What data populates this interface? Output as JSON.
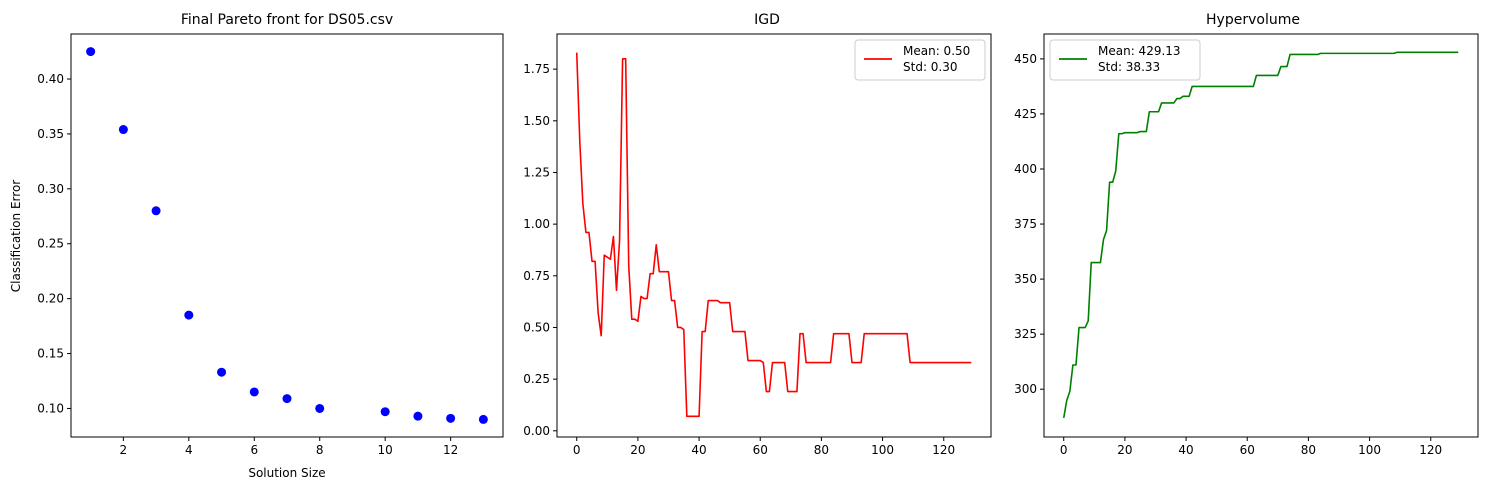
{
  "figure": {
    "background": "#ffffff"
  },
  "chart_data": [
    {
      "type": "scatter",
      "title": "Final Pareto front for DS05.csv",
      "xlabel": "Solution Size",
      "ylabel": "Classification Error",
      "xlim": [
        0.4,
        13.6
      ],
      "ylim": [
        0.074,
        0.441
      ],
      "xticks": [
        2,
        4,
        6,
        8,
        10,
        12
      ],
      "yticks": [
        0.1,
        0.15,
        0.2,
        0.25,
        0.3,
        0.35,
        0.4
      ],
      "ytick_labels": [
        "0.10",
        "0.15",
        "0.20",
        "0.25",
        "0.30",
        "0.35",
        "0.40"
      ],
      "color": "#0000ff",
      "grid": false,
      "x": [
        1,
        2,
        3,
        4,
        5,
        6,
        7,
        8,
        10,
        11,
        12,
        13
      ],
      "y": [
        0.425,
        0.354,
        0.28,
        0.185,
        0.133,
        0.115,
        0.109,
        0.1,
        0.097,
        0.093,
        0.091,
        0.09
      ]
    },
    {
      "type": "line",
      "title": "IGD",
      "xlabel": "",
      "ylabel": "",
      "xlim": [
        -6.45,
        135.45
      ],
      "ylim": [
        -0.03,
        1.92
      ],
      "xticks": [
        0,
        20,
        40,
        60,
        80,
        100,
        120
      ],
      "yticks": [
        0.0,
        0.25,
        0.5,
        0.75,
        1.0,
        1.25,
        1.5,
        1.75
      ],
      "ytick_labels": [
        "0.00",
        "0.25",
        "0.50",
        "0.75",
        "1.00",
        "1.25",
        "1.50",
        "1.75"
      ],
      "color": "#ff0000",
      "grid": false,
      "legend": {
        "position": "upper right",
        "lines": [
          "Mean: 0.50",
          "Std: 0.30"
        ]
      },
      "series": [
        {
          "x": [
            0,
            1,
            2,
            3,
            4,
            5,
            6,
            7,
            8,
            9,
            10,
            11,
            12,
            13,
            14,
            15,
            16,
            17,
            18,
            19,
            20,
            21,
            22,
            23,
            24,
            25,
            26,
            27,
            28,
            29,
            30,
            31,
            32,
            33,
            34,
            35,
            36,
            37,
            38,
            39,
            40,
            41,
            42,
            43,
            44,
            45,
            46,
            47,
            48,
            49,
            50,
            51,
            52,
            53,
            54,
            55,
            56,
            57,
            58,
            59,
            60,
            61,
            62,
            63,
            64,
            65,
            66,
            67,
            68,
            69,
            70,
            71,
            72,
            73,
            74,
            75,
            76,
            77,
            78,
            79,
            80,
            81,
            82,
            83,
            84,
            85,
            86,
            87,
            88,
            89,
            90,
            91,
            92,
            93,
            94,
            95,
            96,
            97,
            98,
            99,
            100,
            101,
            102,
            103,
            104,
            105,
            106,
            107,
            108,
            109,
            110,
            111,
            112,
            113,
            114,
            115,
            116,
            117,
            118,
            119,
            120,
            121,
            122,
            123,
            124,
            125,
            126,
            127,
            128,
            129
          ],
          "y": [
            1.83,
            1.4,
            1.1,
            0.96,
            0.96,
            0.82,
            0.82,
            0.57,
            0.46,
            0.85,
            0.84,
            0.83,
            0.94,
            0.68,
            0.92,
            1.8,
            1.8,
            0.8,
            0.54,
            0.54,
            0.53,
            0.65,
            0.64,
            0.64,
            0.76,
            0.76,
            0.9,
            0.77,
            0.77,
            0.77,
            0.77,
            0.63,
            0.63,
            0.5,
            0.5,
            0.49,
            0.07,
            0.07,
            0.07,
            0.07,
            0.07,
            0.48,
            0.48,
            0.63,
            0.63,
            0.63,
            0.63,
            0.62,
            0.62,
            0.62,
            0.62,
            0.48,
            0.48,
            0.48,
            0.48,
            0.48,
            0.34,
            0.34,
            0.34,
            0.34,
            0.34,
            0.33,
            0.19,
            0.19,
            0.33,
            0.33,
            0.33,
            0.33,
            0.33,
            0.19,
            0.19,
            0.19,
            0.19,
            0.47,
            0.47,
            0.33,
            0.33,
            0.33,
            0.33,
            0.33,
            0.33,
            0.33,
            0.33,
            0.33,
            0.47,
            0.47,
            0.47,
            0.47,
            0.47,
            0.47,
            0.33,
            0.33,
            0.33,
            0.33,
            0.47,
            0.47,
            0.47,
            0.47,
            0.47,
            0.47,
            0.47,
            0.47,
            0.47,
            0.47,
            0.47,
            0.47,
            0.47,
            0.47,
            0.47,
            0.33,
            0.33,
            0.33,
            0.33,
            0.33,
            0.33,
            0.33,
            0.33,
            0.33,
            0.33,
            0.33,
            0.33,
            0.33,
            0.33,
            0.33,
            0.33,
            0.33,
            0.33,
            0.33,
            0.33,
            0.33
          ]
        }
      ]
    },
    {
      "type": "line",
      "title": "Hypervolume",
      "xlabel": "",
      "ylabel": "",
      "xlim": [
        -6.45,
        135.45
      ],
      "ylim": [
        278.3,
        461.3
      ],
      "xticks": [
        0,
        20,
        40,
        60,
        80,
        100,
        120
      ],
      "yticks": [
        300,
        325,
        350,
        375,
        400,
        425,
        450
      ],
      "ytick_labels": [
        "300",
        "325",
        "350",
        "375",
        "400",
        "425",
        "450"
      ],
      "color": "#008000",
      "grid": false,
      "legend": {
        "position": "upper left",
        "lines": [
          "Mean: 429.13",
          "Std: 38.33"
        ]
      },
      "series": [
        {
          "x": [
            0,
            1,
            2,
            3,
            4,
            5,
            6,
            7,
            8,
            9,
            10,
            11,
            12,
            13,
            14,
            15,
            16,
            17,
            18,
            19,
            20,
            21,
            22,
            23,
            24,
            25,
            26,
            27,
            28,
            29,
            30,
            31,
            32,
            33,
            34,
            35,
            36,
            37,
            38,
            39,
            40,
            41,
            42,
            43,
            44,
            45,
            46,
            47,
            48,
            49,
            50,
            51,
            52,
            53,
            54,
            55,
            56,
            57,
            58,
            59,
            60,
            61,
            62,
            63,
            64,
            65,
            66,
            67,
            68,
            69,
            70,
            71,
            72,
            73,
            74,
            75,
            76,
            77,
            78,
            79,
            80,
            81,
            82,
            83,
            84,
            85,
            86,
            87,
            88,
            89,
            90,
            91,
            92,
            93,
            94,
            95,
            96,
            97,
            98,
            99,
            100,
            101,
            102,
            103,
            104,
            105,
            106,
            107,
            108,
            109,
            110,
            111,
            112,
            113,
            114,
            115,
            116,
            117,
            118,
            119,
            120,
            121,
            122,
            123,
            124,
            125,
            126,
            127,
            128,
            129
          ],
          "y": [
            287,
            295,
            299,
            311,
            311,
            328,
            328,
            328,
            331,
            357.5,
            357.5,
            357.5,
            357.5,
            368,
            372,
            394,
            394,
            399,
            416,
            416,
            416.5,
            416.5,
            416.5,
            416.5,
            416.5,
            417,
            417,
            417,
            426,
            426,
            426,
            426,
            430,
            430,
            430,
            430,
            430,
            432,
            432,
            433,
            433,
            433,
            437.5,
            437.5,
            437.5,
            437.5,
            437.5,
            437.5,
            437.5,
            437.5,
            437.5,
            437.5,
            437.5,
            437.5,
            437.5,
            437.5,
            437.5,
            437.5,
            437.5,
            437.5,
            437.5,
            437.5,
            437.5,
            442.5,
            442.5,
            442.5,
            442.5,
            442.5,
            442.5,
            442.5,
            442.5,
            446.5,
            446.5,
            446.5,
            452,
            452,
            452,
            452,
            452,
            452,
            452,
            452,
            452,
            452,
            452.5,
            452.5,
            452.5,
            452.5,
            452.5,
            452.5,
            452.5,
            452.5,
            452.5,
            452.5,
            452.5,
            452.5,
            452.5,
            452.5,
            452.5,
            452.5,
            452.5,
            452.5,
            452.5,
            452.5,
            452.5,
            452.5,
            452.5,
            452.5,
            452.5,
            453,
            453,
            453,
            453,
            453,
            453,
            453,
            453,
            453,
            453,
            453,
            453,
            453,
            453,
            453,
            453,
            453,
            453,
            453,
            453,
            453
          ]
        }
      ]
    }
  ]
}
